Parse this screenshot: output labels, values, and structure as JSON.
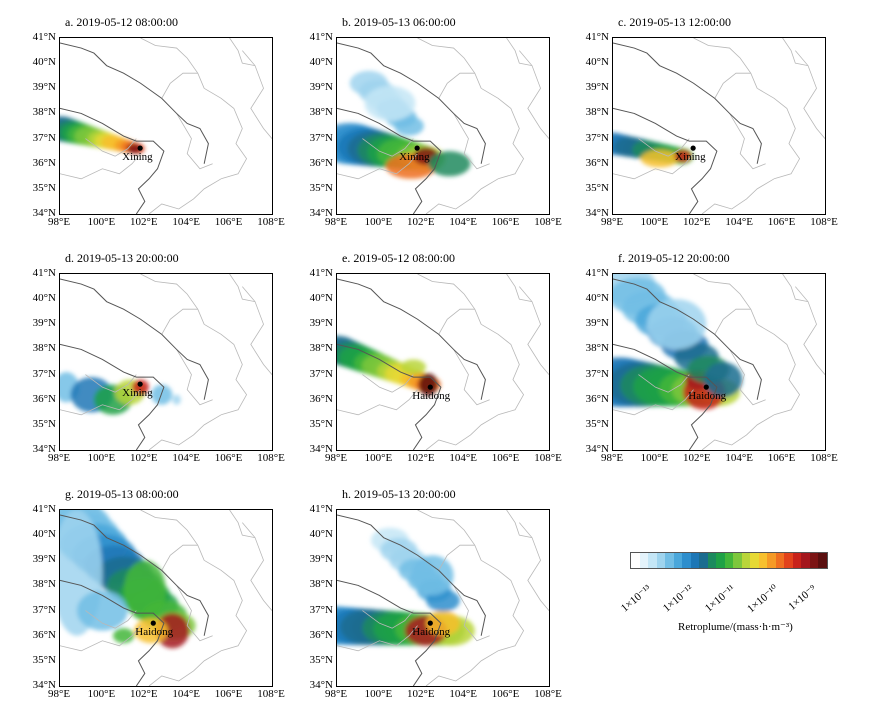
{
  "panels": [
    {
      "id": "a",
      "title": "a. 2019-05-12 08:00:00",
      "city": "Xining"
    },
    {
      "id": "b",
      "title": "b. 2019-05-13 06:00:00",
      "city": "Xining"
    },
    {
      "id": "c",
      "title": "c. 2019-05-13 12:00:00",
      "city": "Xining"
    },
    {
      "id": "d",
      "title": "d. 2019-05-13 20:00:00",
      "city": "Xining"
    },
    {
      "id": "e",
      "title": "e. 2019-05-12 08:00:00",
      "city": "Haidong"
    },
    {
      "id": "f",
      "title": "f. 2019-05-12 20:00:00",
      "city": "Haidong"
    },
    {
      "id": "g",
      "title": "g. 2019-05-13 08:00:00",
      "city": "Haidong"
    },
    {
      "id": "h",
      "title": "h. 2019-05-13 20:00:00",
      "city": "Haidong"
    }
  ],
  "axes": {
    "lat_labels": [
      "41°N",
      "40°N",
      "39°N",
      "38°N",
      "37°N",
      "36°N",
      "35°N",
      "34°N"
    ],
    "lon_labels": [
      "98°E",
      "100°E",
      "102°E",
      "104°E",
      "106°E",
      "108°E"
    ],
    "lat_range": [
      34,
      41
    ],
    "lon_range": [
      98,
      108
    ]
  },
  "legend": {
    "title": "Retroplume/(mass·h·m⁻³)",
    "ticks": [
      "1×10⁻¹³",
      "1×10⁻¹²",
      "1×10⁻¹¹",
      "1×10⁻¹⁰",
      "1×10⁻⁹"
    ],
    "colors": [
      "#ffffff",
      "#e4f3fb",
      "#c4e6f6",
      "#9fd4ee",
      "#72bee5",
      "#4aa7db",
      "#2d8ecd",
      "#1d77b6",
      "#1b6c8f",
      "#1c8a5e",
      "#1fa146",
      "#43b63a",
      "#7dc73c",
      "#b9d53a",
      "#e6d935",
      "#f7c02e",
      "#f59a26",
      "#ef6f20",
      "#e2421b",
      "#c8221a",
      "#a4161d",
      "#7c1414",
      "#5a0f0f"
    ]
  }
}
